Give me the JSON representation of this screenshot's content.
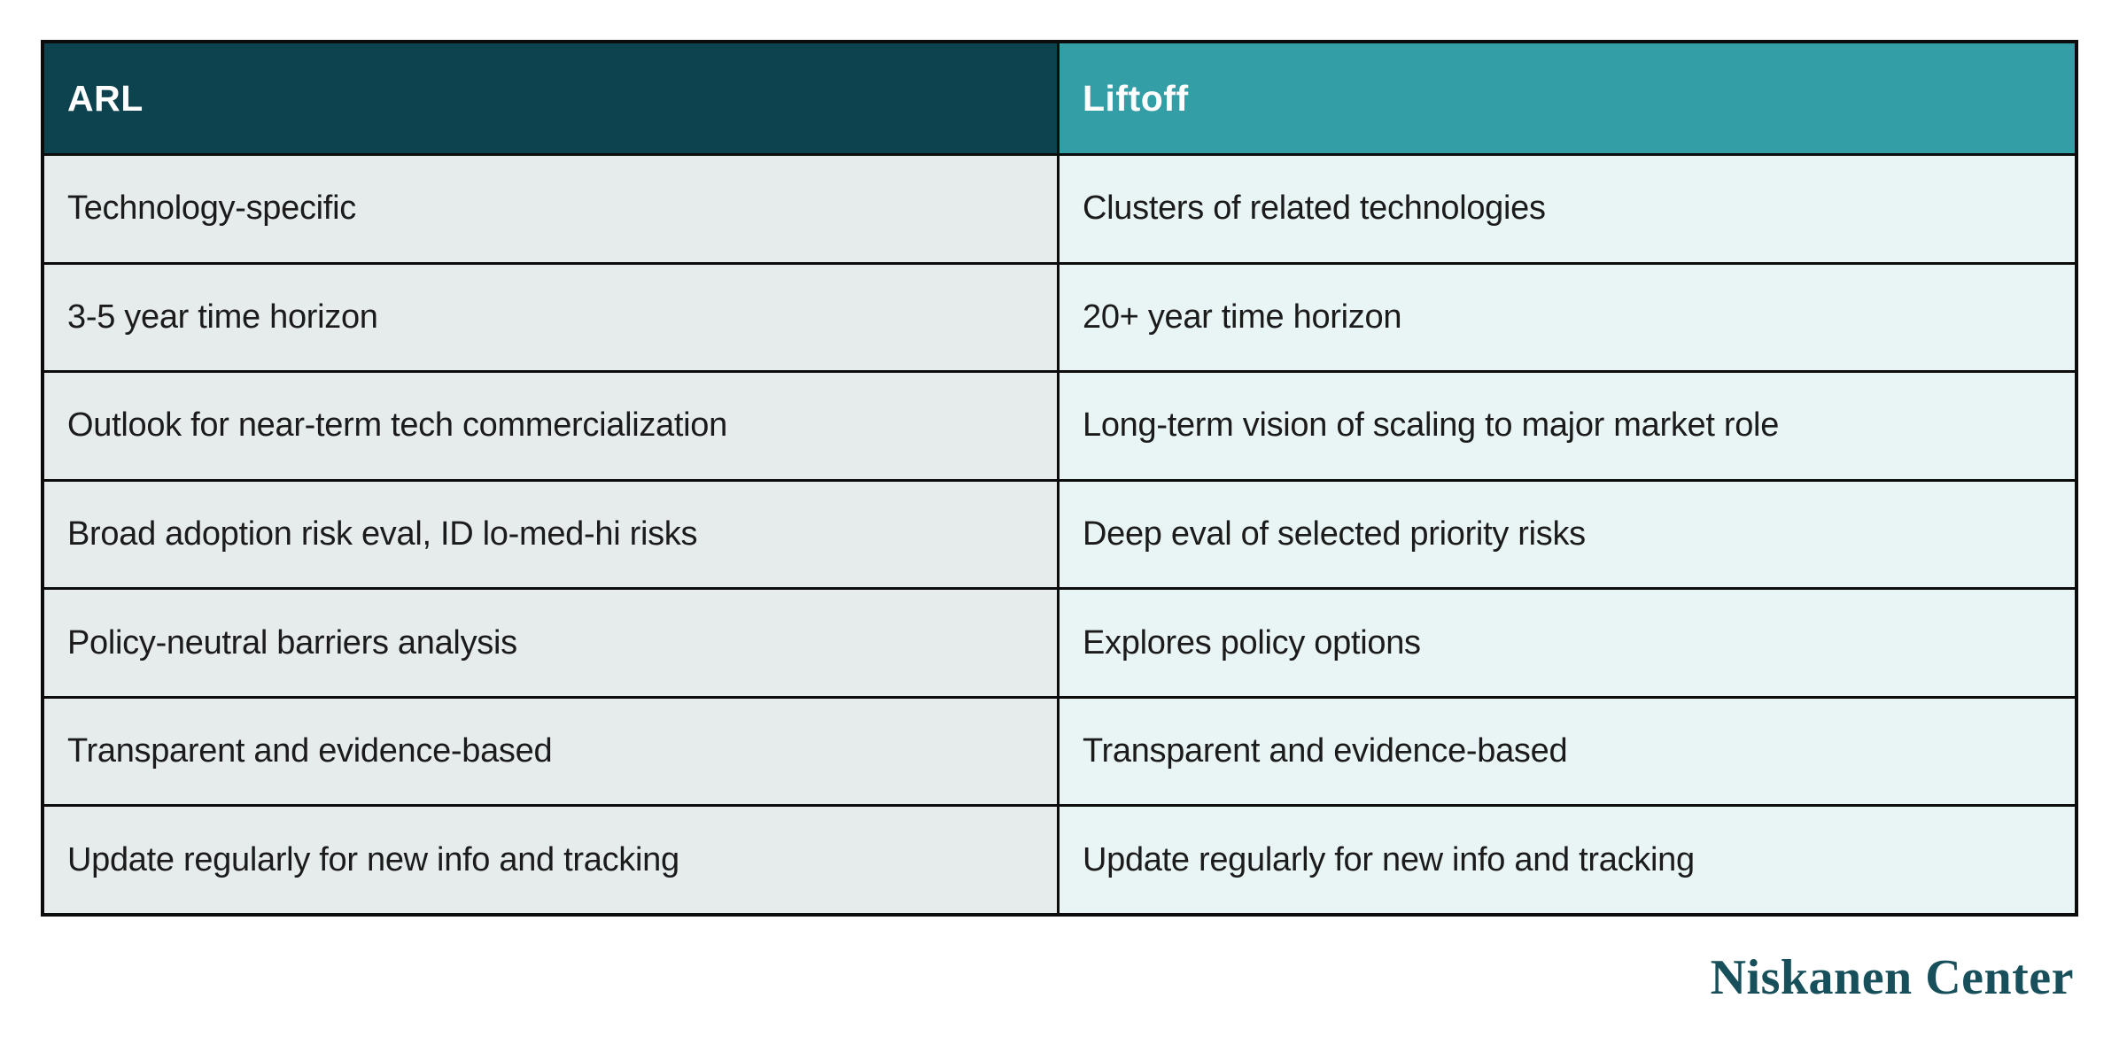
{
  "page": {
    "background": "#ffffff"
  },
  "table": {
    "border_color": "#0c0c0c",
    "header_text_color": "#ffffff",
    "cell_text_color": "#1b1b1b",
    "columns": [
      {
        "header": "ARL",
        "header_bg": "#0d434e",
        "cell_bg": "#e6ebeb"
      },
      {
        "header": "Liftoff",
        "header_bg": "#339ea5",
        "cell_bg": "#e9f4f4"
      }
    ],
    "rows": [
      [
        "Technology-specific",
        "Clusters of related technologies"
      ],
      [
        "3-5 year time horizon",
        "20+ year time horizon"
      ],
      [
        "Outlook for near-term tech commercialization",
        "Long-term vision of scaling to major market role"
      ],
      [
        "Broad adoption risk eval, ID lo-med-hi risks",
        "Deep eval of selected priority risks"
      ],
      [
        "Policy-neutral barriers analysis",
        "Explores policy options"
      ],
      [
        "Transparent and evidence-based",
        "Transparent and evidence-based"
      ],
      [
        "Update regularly for new info and tracking",
        "Update regularly for new info and tracking"
      ]
    ]
  },
  "chart_data": {
    "type": "table",
    "columns": [
      "ARL",
      "Liftoff"
    ],
    "rows": [
      [
        "Technology-specific",
        "Clusters of related technologies"
      ],
      [
        "3-5 year time horizon",
        "20+ year time horizon"
      ],
      [
        "Outlook for near-term tech commercialization",
        "Long-term vision of scaling to major market role"
      ],
      [
        "Broad adoption risk eval, ID lo-med-hi risks",
        "Deep eval of selected priority risks"
      ],
      [
        "Policy-neutral barriers analysis",
        "Explores policy options"
      ],
      [
        "Transparent and evidence-based",
        "Transparent and evidence-based"
      ],
      [
        "Update regularly for new info and tracking",
        "Update regularly for new info and tracking"
      ]
    ]
  },
  "branding": {
    "logo_text": "Niskanen Center",
    "logo_color": "#17505a"
  }
}
